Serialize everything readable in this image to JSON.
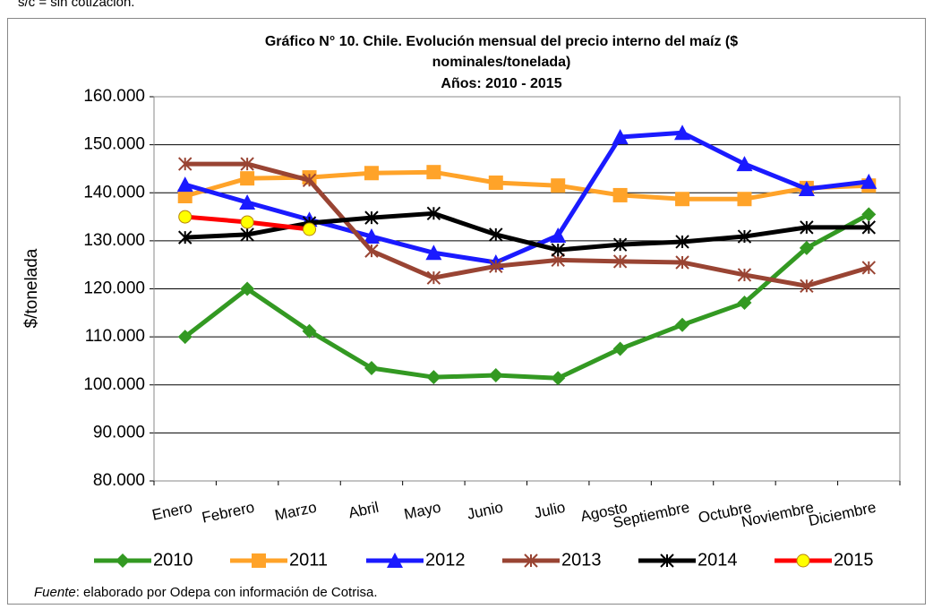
{
  "note": "s/c = sin cotización.",
  "chart_data": {
    "type": "line",
    "title": [
      "Gráfico N° 10. Chile. Evolución mensual del precio interno del maíz ($",
      "nominales/tonelada)"
    ],
    "subtitle": "Años: 2010 - 2015",
    "y_label": "$/tonelada",
    "categories": [
      "Enero",
      "Febrero",
      "Marzo",
      "Abril",
      "Mayo",
      "Junio",
      "Julio",
      "Agosto",
      "Septiembre",
      "Octubre",
      "Noviembre",
      "Diciembre"
    ],
    "series": [
      {
        "name": "2010",
        "color": "#339922",
        "marker": "diamond",
        "values": [
          110000,
          120000,
          111200,
          103500,
          101600,
          102000,
          101400,
          107500,
          112500,
          117100,
          128500,
          135500
        ]
      },
      {
        "name": "2011",
        "color": "#ffa329",
        "marker": "square",
        "values": [
          139300,
          143000,
          143200,
          144100,
          144300,
          142100,
          141500,
          139500,
          138700,
          138700,
          141000,
          141500
        ]
      },
      {
        "name": "2012",
        "color": "#1a1aff",
        "marker": "triangle",
        "values": [
          141700,
          138000,
          134400,
          130900,
          127500,
          125500,
          131100,
          151600,
          152500,
          146000,
          140800,
          142300
        ]
      },
      {
        "name": "2013",
        "color": "#994433",
        "marker": "star",
        "values": [
          146000,
          146000,
          142600,
          127900,
          122300,
          124700,
          126000,
          125700,
          125500,
          122900,
          120600,
          124400
        ]
      },
      {
        "name": "2014",
        "color": "#000000",
        "marker": "star",
        "values": [
          130700,
          131300,
          133700,
          134800,
          135700,
          131300,
          128100,
          129200,
          129800,
          130900,
          132800,
          132800
        ]
      },
      {
        "name": "2015",
        "color": "#ff0000",
        "marker": "circle",
        "values": [
          135000,
          133900,
          132400,
          null,
          null,
          null,
          null,
          null,
          null,
          null,
          null,
          null
        ]
      }
    ],
    "ylim": [
      80000,
      160000
    ],
    "yticks": [
      {
        "value": 80000,
        "label": "80.000"
      },
      {
        "value": 90000,
        "label": "90.000"
      },
      {
        "value": 100000,
        "label": "100.000"
      },
      {
        "value": 110000,
        "label": "110.000"
      },
      {
        "value": 120000,
        "label": "120.000"
      },
      {
        "value": 130000,
        "label": "130.000"
      },
      {
        "value": 140000,
        "label": "140.000"
      },
      {
        "value": 150000,
        "label": "150.000"
      },
      {
        "value": 160000,
        "label": "160.000"
      }
    ],
    "grid": true,
    "legend": "bottom",
    "source_label": "Fuente",
    "source_text": ": elaborado por Odepa con información de Cotrisa."
  }
}
